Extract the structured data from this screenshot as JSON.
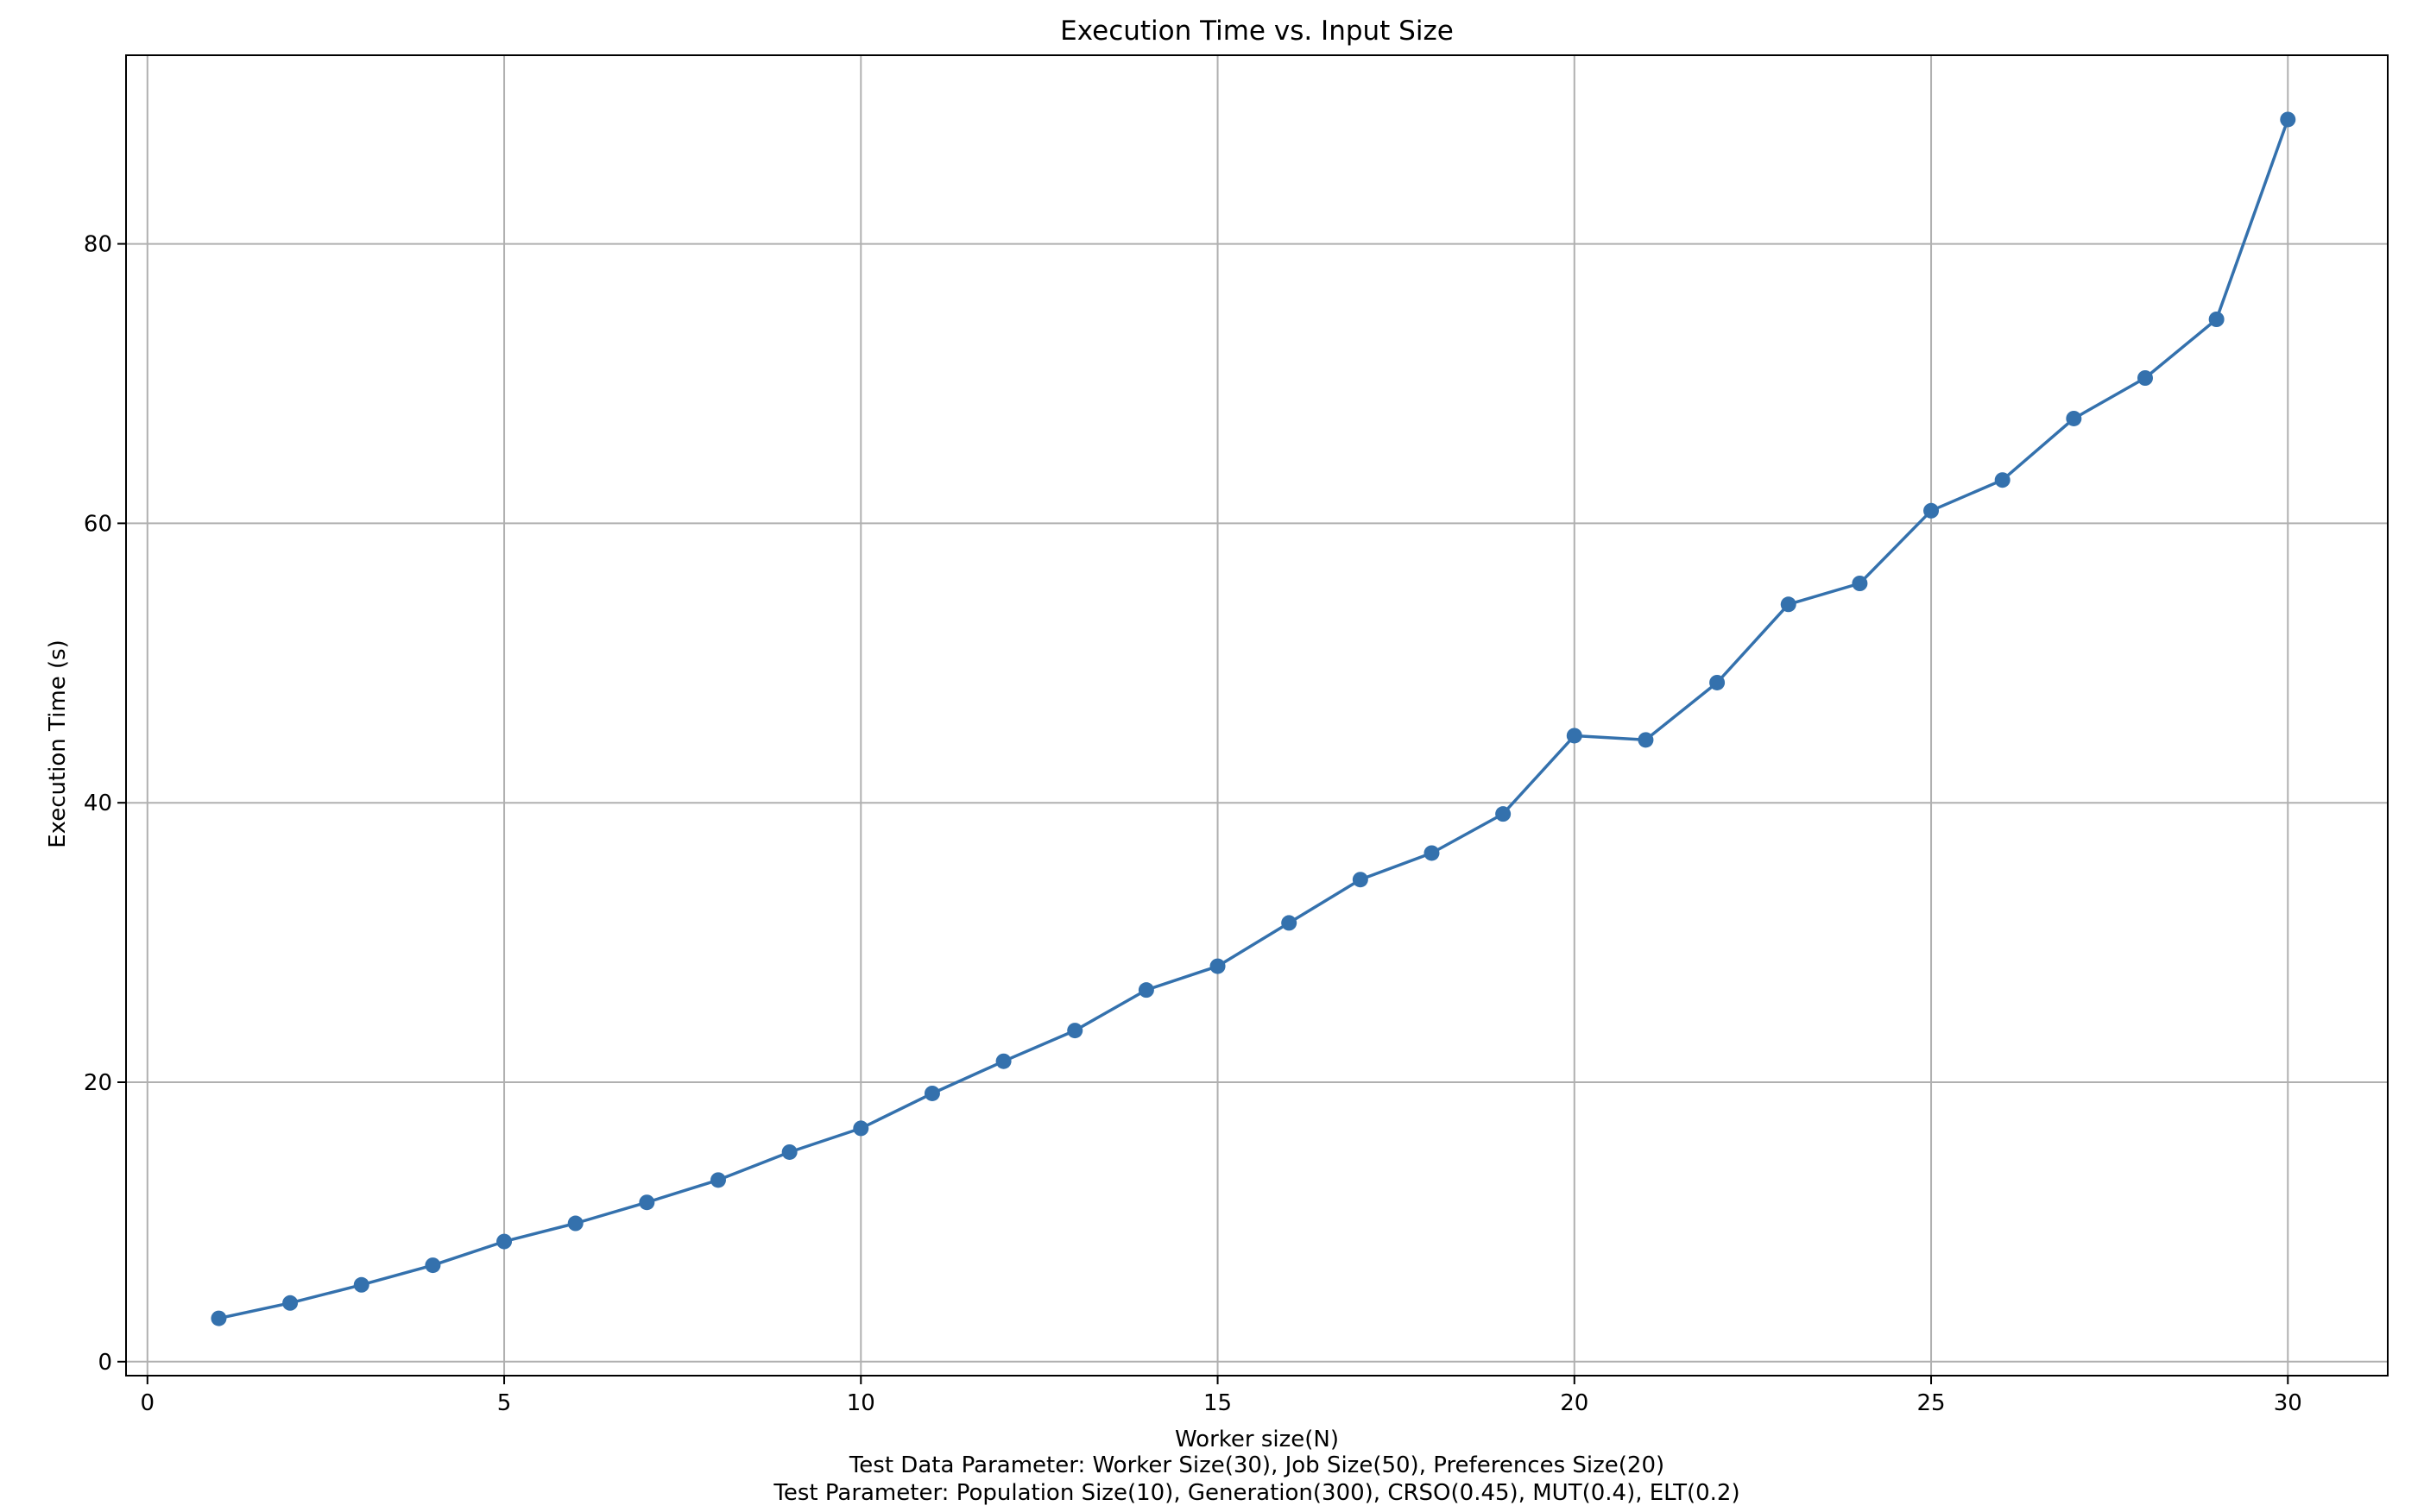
{
  "chart_data": {
    "type": "line",
    "title": "Execution Time vs. Input Size",
    "xlabel": "Worker size(N)",
    "ylabel": "Execution Time (s)",
    "notes": [
      "Test Data Parameter: Worker Size(30), Job Size(50), Preferences Size(20)",
      "Test Parameter: Population Size(10), Generation(300), CRSO(0.45), MUT(0.4), ELT(0.2)"
    ],
    "xlim": [
      -0.3,
      31.4
    ],
    "ylim": [
      -1.0,
      93.5
    ],
    "xticks": [
      0,
      5,
      10,
      15,
      20,
      25,
      30
    ],
    "xtick_labels": [
      "0",
      "5",
      "10",
      "15",
      "20",
      "25",
      "30"
    ],
    "yticks": [
      0,
      20,
      40,
      60,
      80
    ],
    "ytick_labels": [
      "0",
      "20",
      "40",
      "60",
      "80"
    ],
    "grid": true,
    "marker": "circle",
    "color": "#3471ad",
    "x": [
      1,
      2,
      3,
      4,
      5,
      6,
      7,
      8,
      9,
      10,
      11,
      12,
      13,
      14,
      15,
      16,
      17,
      18,
      19,
      20,
      21,
      22,
      23,
      24,
      25,
      26,
      27,
      28,
      29,
      30
    ],
    "y": [
      3.1,
      4.2,
      5.5,
      6.9,
      8.6,
      9.9,
      11.4,
      13.0,
      15.0,
      16.7,
      19.2,
      21.5,
      23.7,
      26.6,
      28.3,
      31.4,
      34.5,
      36.4,
      39.2,
      44.8,
      44.5,
      48.6,
      54.2,
      55.7,
      60.9,
      63.1,
      67.5,
      70.4,
      74.6,
      88.9
    ]
  }
}
